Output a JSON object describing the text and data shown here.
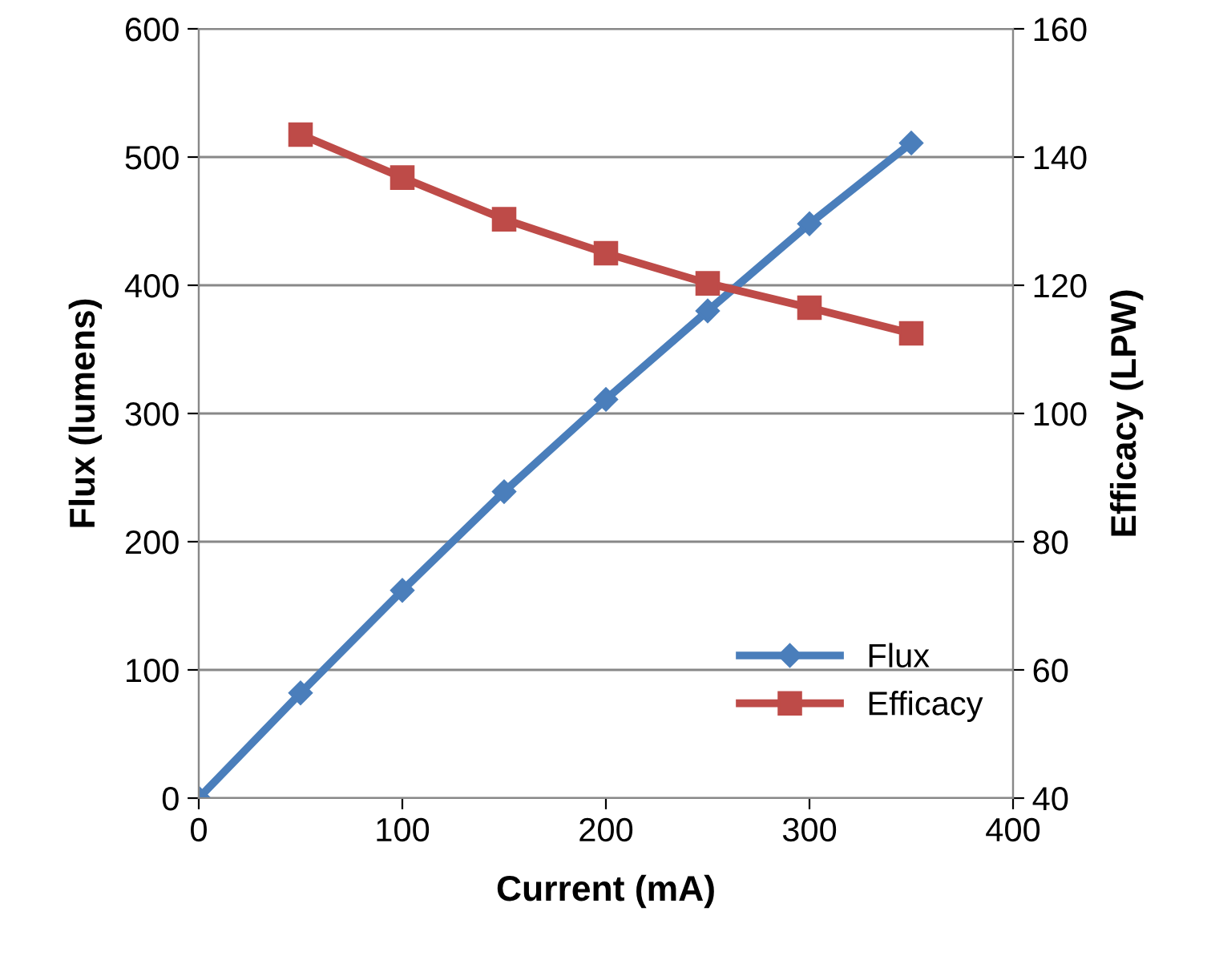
{
  "chart_data": {
    "type": "line",
    "xlabel": "Current (mA)",
    "ylabel": "Flux (lumens)",
    "y2label": "Efficacy (LPW)",
    "xlim": [
      0,
      400
    ],
    "xticks": [
      0,
      100,
      200,
      300,
      400
    ],
    "ylim": [
      0,
      600
    ],
    "yticks": [
      0,
      100,
      200,
      300,
      400,
      500,
      600
    ],
    "y2lim": [
      40,
      160
    ],
    "y2ticks": [
      40,
      60,
      80,
      100,
      120,
      140,
      160
    ],
    "grid": "y",
    "legend": "bottom right",
    "series": [
      {
        "name": "Flux",
        "color": "#4a7ebb",
        "marker": "diamond",
        "x": [
          0,
          50,
          100,
          150,
          200,
          250,
          300,
          350
        ],
        "values": [
          0,
          82,
          162,
          239,
          311,
          380,
          448,
          511
        ]
      },
      {
        "name": "Efficacy",
        "color": "#be4b48",
        "marker": "square",
        "axis": "y2",
        "x": [
          50,
          100,
          150,
          200,
          250,
          300,
          350
        ],
        "values": [
          143.5,
          136.8,
          130.3,
          125,
          120.3,
          116.5,
          112.5
        ]
      }
    ]
  }
}
